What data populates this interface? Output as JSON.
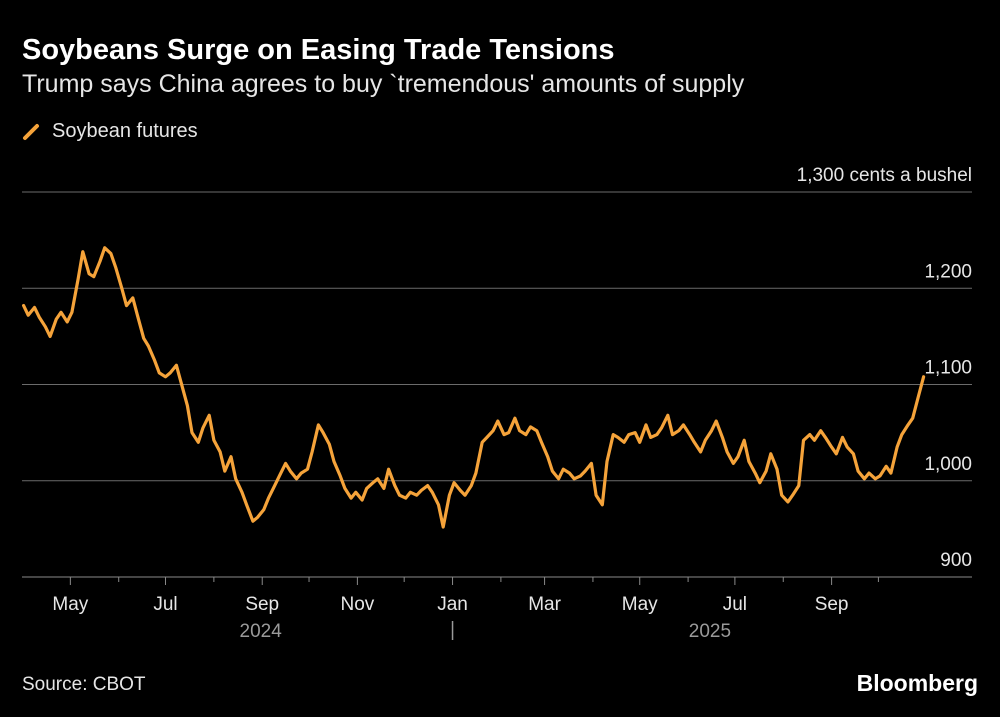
{
  "header": {
    "title": "Soybeans Surge on Easing Trade Tensions",
    "subtitle": "Trump says China agrees to buy `tremendous' amounts of supply"
  },
  "footer": {
    "source": "Source: CBOT",
    "brand": "Bloomberg"
  },
  "colors": {
    "line": "#F5A33A",
    "grid": "#6b6b6b",
    "background": "#000000"
  },
  "chart_data": {
    "type": "line",
    "series": [
      {
        "name": "Soybean futures",
        "color": "#F5A33A",
        "points": [
          [
            "2024-04-01",
            1182
          ],
          [
            "2024-04-04",
            1172
          ],
          [
            "2024-04-08",
            1180
          ],
          [
            "2024-04-11",
            1170
          ],
          [
            "2024-04-15",
            1160
          ],
          [
            "2024-04-18",
            1150
          ],
          [
            "2024-04-22",
            1168
          ],
          [
            "2024-04-25",
            1175
          ],
          [
            "2024-04-29",
            1165
          ],
          [
            "2024-05-02",
            1175
          ],
          [
            "2024-05-06",
            1210
          ],
          [
            "2024-05-09",
            1238
          ],
          [
            "2024-05-13",
            1215
          ],
          [
            "2024-05-16",
            1212
          ],
          [
            "2024-05-20",
            1228
          ],
          [
            "2024-05-23",
            1242
          ],
          [
            "2024-05-27",
            1236
          ],
          [
            "2024-05-30",
            1222
          ],
          [
            "2024-06-03",
            1200
          ],
          [
            "2024-06-06",
            1182
          ],
          [
            "2024-06-10",
            1190
          ],
          [
            "2024-06-13",
            1172
          ],
          [
            "2024-06-17",
            1148
          ],
          [
            "2024-06-20",
            1140
          ],
          [
            "2024-06-24",
            1125
          ],
          [
            "2024-06-27",
            1112
          ],
          [
            "2024-07-01",
            1108
          ],
          [
            "2024-07-04",
            1112
          ],
          [
            "2024-07-08",
            1120
          ],
          [
            "2024-07-11",
            1102
          ],
          [
            "2024-07-15",
            1078
          ],
          [
            "2024-07-18",
            1050
          ],
          [
            "2024-07-22",
            1040
          ],
          [
            "2024-07-25",
            1055
          ],
          [
            "2024-07-29",
            1068
          ],
          [
            "2024-08-01",
            1042
          ],
          [
            "2024-08-05",
            1030
          ],
          [
            "2024-08-08",
            1010
          ],
          [
            "2024-08-12",
            1025
          ],
          [
            "2024-08-15",
            1002
          ],
          [
            "2024-08-19",
            988
          ],
          [
            "2024-08-22",
            975
          ],
          [
            "2024-08-26",
            958
          ],
          [
            "2024-08-29",
            962
          ],
          [
            "2024-09-02",
            970
          ],
          [
            "2024-09-05",
            982
          ],
          [
            "2024-09-09",
            995
          ],
          [
            "2024-09-12",
            1005
          ],
          [
            "2024-09-16",
            1018
          ],
          [
            "2024-09-19",
            1010
          ],
          [
            "2024-09-23",
            1002
          ],
          [
            "2024-09-26",
            1008
          ],
          [
            "2024-09-30",
            1012
          ],
          [
            "2024-10-03",
            1030
          ],
          [
            "2024-10-07",
            1058
          ],
          [
            "2024-10-10",
            1050
          ],
          [
            "2024-10-14",
            1038
          ],
          [
            "2024-10-17",
            1020
          ],
          [
            "2024-10-21",
            1005
          ],
          [
            "2024-10-24",
            992
          ],
          [
            "2024-10-28",
            982
          ],
          [
            "2024-10-31",
            988
          ],
          [
            "2024-11-04",
            980
          ],
          [
            "2024-11-07",
            992
          ],
          [
            "2024-11-11",
            998
          ],
          [
            "2024-11-14",
            1002
          ],
          [
            "2024-11-18",
            992
          ],
          [
            "2024-11-21",
            1012
          ],
          [
            "2024-11-25",
            995
          ],
          [
            "2024-11-28",
            985
          ],
          [
            "2024-12-02",
            982
          ],
          [
            "2024-12-05",
            988
          ],
          [
            "2024-12-09",
            985
          ],
          [
            "2024-12-12",
            990
          ],
          [
            "2024-12-16",
            995
          ],
          [
            "2024-12-19",
            988
          ],
          [
            "2024-12-23",
            975
          ],
          [
            "2024-12-26",
            952
          ],
          [
            "2024-12-30",
            985
          ],
          [
            "2025-01-02",
            998
          ],
          [
            "2025-01-06",
            990
          ],
          [
            "2025-01-09",
            985
          ],
          [
            "2025-01-13",
            995
          ],
          [
            "2025-01-16",
            1008
          ],
          [
            "2025-01-20",
            1040
          ],
          [
            "2025-01-23",
            1045
          ],
          [
            "2025-01-27",
            1052
          ],
          [
            "2025-01-30",
            1062
          ],
          [
            "2025-02-03",
            1048
          ],
          [
            "2025-02-06",
            1050
          ],
          [
            "2025-02-10",
            1065
          ],
          [
            "2025-02-13",
            1052
          ],
          [
            "2025-02-17",
            1048
          ],
          [
            "2025-02-20",
            1056
          ],
          [
            "2025-02-24",
            1052
          ],
          [
            "2025-02-27",
            1040
          ],
          [
            "2025-03-03",
            1025
          ],
          [
            "2025-03-06",
            1010
          ],
          [
            "2025-03-10",
            1002
          ],
          [
            "2025-03-13",
            1012
          ],
          [
            "2025-03-17",
            1008
          ],
          [
            "2025-03-20",
            1002
          ],
          [
            "2025-03-24",
            1005
          ],
          [
            "2025-03-27",
            1010
          ],
          [
            "2025-03-31",
            1018
          ],
          [
            "2025-04-03",
            985
          ],
          [
            "2025-04-07",
            975
          ],
          [
            "2025-04-10",
            1020
          ],
          [
            "2025-04-14",
            1048
          ],
          [
            "2025-04-17",
            1045
          ],
          [
            "2025-04-21",
            1040
          ],
          [
            "2025-04-24",
            1048
          ],
          [
            "2025-04-28",
            1050
          ],
          [
            "2025-05-01",
            1040
          ],
          [
            "2025-05-05",
            1058
          ],
          [
            "2025-05-08",
            1045
          ],
          [
            "2025-05-12",
            1048
          ],
          [
            "2025-05-15",
            1055
          ],
          [
            "2025-05-19",
            1068
          ],
          [
            "2025-05-22",
            1048
          ],
          [
            "2025-05-26",
            1052
          ],
          [
            "2025-05-29",
            1058
          ],
          [
            "2025-06-02",
            1048
          ],
          [
            "2025-06-05",
            1040
          ],
          [
            "2025-06-09",
            1030
          ],
          [
            "2025-06-12",
            1042
          ],
          [
            "2025-06-16",
            1052
          ],
          [
            "2025-06-19",
            1062
          ],
          [
            "2025-06-23",
            1045
          ],
          [
            "2025-06-26",
            1030
          ],
          [
            "2025-06-30",
            1018
          ],
          [
            "2025-07-03",
            1025
          ],
          [
            "2025-07-07",
            1042
          ],
          [
            "2025-07-10",
            1020
          ],
          [
            "2025-07-14",
            1008
          ],
          [
            "2025-07-17",
            998
          ],
          [
            "2025-07-21",
            1010
          ],
          [
            "2025-07-24",
            1028
          ],
          [
            "2025-07-28",
            1012
          ],
          [
            "2025-07-31",
            985
          ],
          [
            "2025-08-04",
            978
          ],
          [
            "2025-08-07",
            985
          ],
          [
            "2025-08-11",
            995
          ],
          [
            "2025-08-14",
            1042
          ],
          [
            "2025-08-18",
            1048
          ],
          [
            "2025-08-21",
            1042
          ],
          [
            "2025-08-25",
            1052
          ],
          [
            "2025-08-28",
            1045
          ],
          [
            "2025-09-01",
            1035
          ],
          [
            "2025-09-04",
            1028
          ],
          [
            "2025-09-08",
            1045
          ],
          [
            "2025-09-11",
            1035
          ],
          [
            "2025-09-15",
            1028
          ],
          [
            "2025-09-18",
            1010
          ],
          [
            "2025-09-22",
            1002
          ],
          [
            "2025-09-25",
            1008
          ],
          [
            "2025-09-29",
            1002
          ],
          [
            "2025-10-02",
            1005
          ],
          [
            "2025-10-06",
            1015
          ],
          [
            "2025-10-09",
            1008
          ],
          [
            "2025-10-13",
            1035
          ],
          [
            "2025-10-16",
            1048
          ],
          [
            "2025-10-20",
            1058
          ],
          [
            "2025-10-23",
            1065
          ],
          [
            "2025-10-27",
            1090
          ],
          [
            "2025-10-30",
            1108
          ]
        ]
      }
    ],
    "y_axis_unit": "1,300 cents a bushel",
    "ylim": [
      900,
      1300
    ],
    "yticks": [
      {
        "value": 1300,
        "label": "1,300 cents a bushel"
      },
      {
        "value": 1200,
        "label": "1,200"
      },
      {
        "value": 1100,
        "label": "1,100"
      },
      {
        "value": 1000,
        "label": "1,000"
      },
      {
        "value": 900,
        "label": "900"
      }
    ],
    "xlim": [
      "2024-03-31",
      "2025-11-30"
    ],
    "xticks": [
      {
        "date": "2024-05-01",
        "label": "May"
      },
      {
        "date": "2024-07-01",
        "label": "Jul"
      },
      {
        "date": "2024-09-01",
        "label": "Sep"
      },
      {
        "date": "2024-11-01",
        "label": "Nov"
      },
      {
        "date": "2025-01-01",
        "label": "Jan"
      },
      {
        "date": "2025-03-01",
        "label": "Mar"
      },
      {
        "date": "2025-05-01",
        "label": "May"
      },
      {
        "date": "2025-07-01",
        "label": "Jul"
      },
      {
        "date": "2025-09-01",
        "label": "Sep"
      }
    ],
    "minor_xticks": [
      "2024-06-01",
      "2024-08-01",
      "2024-10-01",
      "2024-12-01",
      "2025-02-01",
      "2025-04-01",
      "2025-06-01",
      "2025-08-01",
      "2025-10-01"
    ],
    "year_labels": [
      {
        "label": "2024",
        "date": "2024-08-31"
      },
      {
        "label": "2025",
        "date": "2025-06-15"
      }
    ],
    "year_divider": "2025-01-01",
    "grid": "horizontal",
    "legend_position": "top-left"
  }
}
